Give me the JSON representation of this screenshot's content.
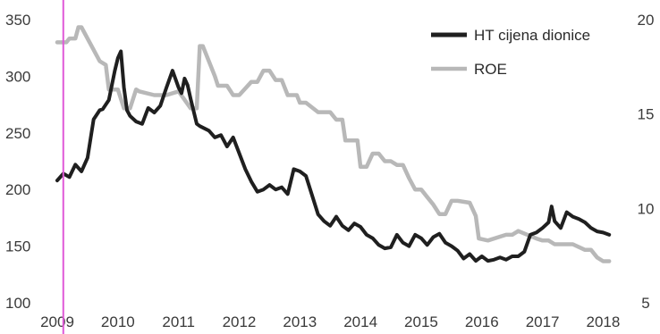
{
  "chart_data": {
    "type": "line",
    "title": "",
    "xlabel": "",
    "ylabel_left": "",
    "ylabel_right": "",
    "grid": false,
    "legend_position": "top-right",
    "left_axis": {
      "ylim": [
        100,
        350
      ],
      "ticks": [
        "100",
        "150",
        "200",
        "250",
        "300",
        "350"
      ]
    },
    "right_axis": {
      "ylim": [
        5,
        20
      ],
      "ticks": [
        "5",
        "10",
        "15",
        "20"
      ]
    },
    "x_axis": {
      "xlim": [
        2009.0,
        2018.2
      ],
      "ticks": [
        "2009",
        "2010",
        "2011",
        "2012",
        "2013",
        "2014",
        "2015",
        "2016",
        "2017",
        "2018"
      ]
    },
    "series": [
      {
        "name": "HT cijena dionice",
        "axis": "left",
        "color": "#1f1f1f",
        "x": [
          2009.0,
          2009.1,
          2009.2,
          2009.3,
          2009.4,
          2009.5,
          2009.6,
          2009.7,
          2009.75,
          2009.85,
          2009.95,
          2010.0,
          2010.05,
          2010.1,
          2010.15,
          2010.2,
          2010.3,
          2010.4,
          2010.5,
          2010.6,
          2010.7,
          2010.8,
          2010.9,
          2011.0,
          2011.05,
          2011.1,
          2011.15,
          2011.2,
          2011.3,
          2011.35,
          2011.5,
          2011.6,
          2011.7,
          2011.8,
          2011.9,
          2012.0,
          2012.1,
          2012.2,
          2012.3,
          2012.4,
          2012.5,
          2012.6,
          2012.7,
          2012.8,
          2012.9,
          2013.0,
          2013.1,
          2013.2,
          2013.3,
          2013.4,
          2013.5,
          2013.6,
          2013.7,
          2013.8,
          2013.9,
          2014.0,
          2014.1,
          2014.2,
          2014.3,
          2014.4,
          2014.5,
          2014.6,
          2014.7,
          2014.8,
          2014.9,
          2015.0,
          2015.1,
          2015.2,
          2015.3,
          2015.4,
          2015.5,
          2015.6,
          2015.7,
          2015.8,
          2015.9,
          2016.0,
          2016.1,
          2016.2,
          2016.3,
          2016.4,
          2016.5,
          2016.6,
          2016.7,
          2016.8,
          2016.9,
          2017.0,
          2017.1,
          2017.15,
          2017.2,
          2017.3,
          2017.4,
          2017.5,
          2017.6,
          2017.7,
          2017.8,
          2017.9,
          2018.0,
          2018.1
        ],
        "values": [
          208,
          214,
          211,
          222,
          216,
          228,
          262,
          270,
          271,
          279,
          305,
          316,
          322,
          290,
          270,
          265,
          260,
          258,
          272,
          268,
          274,
          290,
          305,
          290,
          285,
          298,
          292,
          280,
          258,
          256,
          252,
          246,
          248,
          238,
          246,
          232,
          218,
          207,
          198,
          200,
          204,
          200,
          202,
          196,
          218,
          216,
          212,
          195,
          178,
          172,
          168,
          176,
          168,
          164,
          170,
          167,
          160,
          157,
          151,
          148,
          149,
          160,
          153,
          150,
          160,
          157,
          151,
          158,
          161,
          153,
          150,
          146,
          139,
          143,
          137,
          141,
          137,
          138,
          140,
          138,
          141,
          141,
          145,
          160,
          162,
          166,
          171,
          185,
          172,
          166,
          180,
          176,
          174,
          171,
          166,
          163,
          162,
          160
        ]
      },
      {
        "name": "ROE",
        "axis": "right",
        "color": "#b8b8b8",
        "x": [
          2009.0,
          2009.15,
          2009.2,
          2009.3,
          2009.35,
          2009.4,
          2009.6,
          2009.7,
          2009.8,
          2009.85,
          2010.0,
          2010.1,
          2010.2,
          2010.3,
          2010.35,
          2010.6,
          2010.8,
          2011.0,
          2011.2,
          2011.3,
          2011.35,
          2011.4,
          2011.6,
          2011.65,
          2011.8,
          2011.9,
          2012.0,
          2012.2,
          2012.3,
          2012.4,
          2012.5,
          2012.6,
          2012.7,
          2012.8,
          2012.95,
          2013.0,
          2013.1,
          2013.3,
          2013.4,
          2013.5,
          2013.6,
          2013.7,
          2013.75,
          2013.95,
          2014.0,
          2014.1,
          2014.2,
          2014.3,
          2014.4,
          2014.5,
          2014.6,
          2014.7,
          2014.8,
          2014.9,
          2015.0,
          2015.1,
          2015.2,
          2015.3,
          2015.4,
          2015.5,
          2015.6,
          2015.8,
          2015.9,
          2015.95,
          2016.1,
          2016.3,
          2016.4,
          2016.5,
          2016.6,
          2016.75,
          2016.9,
          2017.0,
          2017.1,
          2017.2,
          2017.5,
          2017.7,
          2017.8,
          2017.9,
          2018.0,
          2018.1
        ],
        "values": [
          18.8,
          18.8,
          19.0,
          19.0,
          19.6,
          19.6,
          18.4,
          17.8,
          17.6,
          16.3,
          16.3,
          15.3,
          15.3,
          16.3,
          16.2,
          16.0,
          16.0,
          16.2,
          15.3,
          15.3,
          18.6,
          18.6,
          17.0,
          16.5,
          16.5,
          16.0,
          16.0,
          16.7,
          16.7,
          17.3,
          17.3,
          16.8,
          16.8,
          16.0,
          16.0,
          15.6,
          15.6,
          15.1,
          15.1,
          15.1,
          14.7,
          14.7,
          13.6,
          13.6,
          12.2,
          12.2,
          12.9,
          12.9,
          12.5,
          12.5,
          12.3,
          12.3,
          11.6,
          11.0,
          11.0,
          10.6,
          10.2,
          9.7,
          9.7,
          10.4,
          10.4,
          10.3,
          9.6,
          8.4,
          8.3,
          8.5,
          8.6,
          8.6,
          8.8,
          8.6,
          8.4,
          8.3,
          8.3,
          8.1,
          8.1,
          7.8,
          7.8,
          7.4,
          7.2,
          7.2
        ]
      }
    ],
    "annotation_line": {
      "x": 2009.1,
      "color": "#e05ad8"
    }
  }
}
